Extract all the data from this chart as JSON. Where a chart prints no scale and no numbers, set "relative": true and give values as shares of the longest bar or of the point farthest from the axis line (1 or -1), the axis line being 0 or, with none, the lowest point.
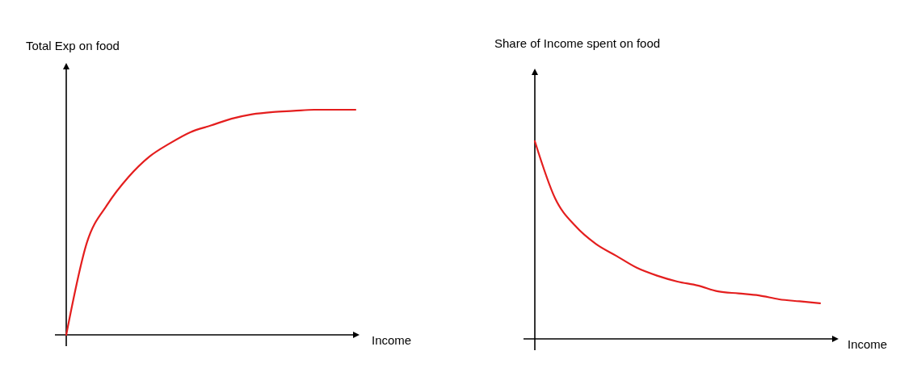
{
  "chart_data": [
    {
      "type": "line",
      "ylabel": "Total Exp on food",
      "xlabel": "Income",
      "relative": true,
      "color": "#e41e1e",
      "categories": [
        null,
        null,
        null,
        null,
        null,
        null,
        null,
        null,
        null,
        null,
        null,
        null,
        null,
        null,
        null
      ],
      "values": [
        0,
        0.41,
        0.58,
        0.7,
        0.79,
        0.85,
        0.9,
        0.93,
        0.96,
        0.98,
        0.99,
        0.995,
        1,
        1,
        1
      ]
    },
    {
      "type": "line",
      "ylabel": "Share of Income spent on food",
      "xlabel": "Income",
      "relative": true,
      "color": "#e41e1e",
      "categories": [
        null,
        null,
        null,
        null,
        null,
        null,
        null,
        null,
        null,
        null,
        null,
        null,
        null,
        null,
        null
      ],
      "values": [
        1,
        0.71,
        0.57,
        0.48,
        0.42,
        0.36,
        0.32,
        0.29,
        0.27,
        0.24,
        0.23,
        0.22,
        0.2,
        0.19,
        0.18
      ]
    }
  ]
}
